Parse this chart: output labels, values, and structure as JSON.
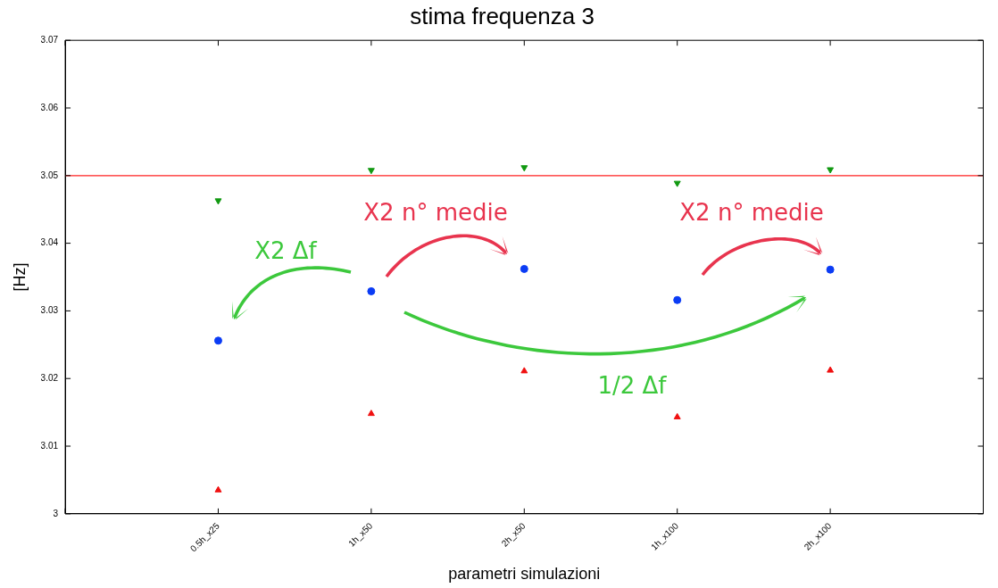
{
  "chart_data": {
    "type": "scatter",
    "title": "stima frequenza 3",
    "xlabel": "parametri simulazioni",
    "ylabel": "[Hz]",
    "categories": [
      null,
      "0.5h_x25",
      "1h_x50",
      "2h_x50",
      "1h_x100",
      "2h_x100",
      null
    ],
    "series": [
      {
        "color": "#0b3cf5",
        "marker": "circle",
        "values": [
          null,
          3.0256,
          3.0329,
          3.0362,
          3.0316,
          3.0361,
          null
        ]
      },
      {
        "color": "#119911",
        "marker": "triangle",
        "values": [
          null,
          3.0463,
          3.0508,
          3.0512,
          3.0489,
          3.0509,
          null
        ]
      },
      {
        "color": "#f01010",
        "marker": "triangle",
        "values": [
          null,
          3.0035,
          3.0148,
          3.0211,
          3.0143,
          3.0212,
          null
        ]
      }
    ],
    "ylim": [
      3,
      3.07
    ],
    "yticks": [
      3,
      3.01,
      3.02,
      3.03,
      3.04,
      3.05,
      3.06,
      3.07
    ],
    "ref_lines": [
      {
        "axis": "y",
        "value": 3.05,
        "color": "#ff2020"
      }
    ],
    "annotations": [
      "X2 n° medie",
      "X2 n° medie",
      "X2 Δf",
      "1/2 Δf"
    ],
    "grid": false,
    "legend": false
  }
}
